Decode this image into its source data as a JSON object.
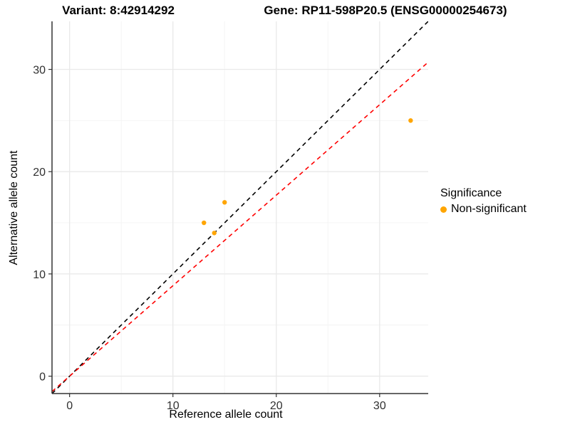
{
  "figure": {
    "title_left": "Variant: 8:42914292",
    "title_right": "Gene: RP11-598P20.5 (ENSG00000254673)",
    "x_label": "Reference allele count",
    "y_label": "Alternative allele count"
  },
  "legend": {
    "title": "Significance",
    "items": [
      {
        "label": "Non-significant",
        "color": "#FFA500"
      }
    ]
  },
  "chart_data": {
    "type": "scatter",
    "title": "Variant: 8:42914292 | Gene: RP11-598P20.5 (ENSG00000254673)",
    "xlabel": "Reference allele count",
    "ylabel": "Alternative allele count",
    "xlim": [
      -1.7,
      34.7
    ],
    "ylim": [
      -1.7,
      34.7
    ],
    "x_ticks": [
      0,
      10,
      20,
      30
    ],
    "y_ticks": [
      0,
      10,
      20,
      30
    ],
    "x_minor_ticks": [
      5,
      15,
      25
    ],
    "y_minor_ticks": [
      5,
      15,
      25
    ],
    "grid": true,
    "legend_position": "right",
    "series": [
      {
        "name": "Non-significant",
        "color": "#FFA500",
        "points": [
          [
            13,
            15
          ],
          [
            14,
            14
          ],
          [
            15,
            17
          ],
          [
            33,
            25
          ]
        ]
      }
    ],
    "lines": [
      {
        "name": "identity-line",
        "slope": 1,
        "intercept": 0,
        "color": "#000000",
        "dashed": true
      },
      {
        "name": "ratio-line",
        "slope": 0.885,
        "intercept": 0,
        "color": "#FF0000",
        "dashed": true
      }
    ],
    "colors": {
      "axis_line": "#333333",
      "tick_label": "#303030",
      "grid_major": "#e9e9e9",
      "grid_minor": "#f4f4f4",
      "background": "#ffffff"
    }
  }
}
